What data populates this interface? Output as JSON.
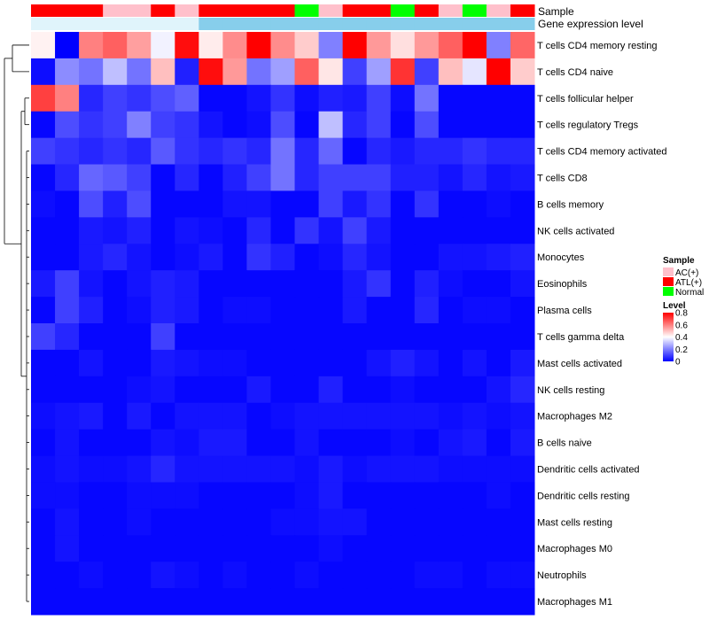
{
  "chart_data": {
    "type": "heatmap",
    "title": "",
    "annotation_rows": [
      {
        "name": "Sample",
        "label": "Sample"
      },
      {
        "name": "Gene expression level",
        "label": "Gene expression level"
      }
    ],
    "sample_groups": [
      "ATL(+)",
      "ATL(+)",
      "ATL(+)",
      "AC(+)",
      "AC(+)",
      "ATL(+)",
      "AC(+)",
      "ATL(+)",
      "ATL(+)",
      "ATL(+)",
      "ATL(+)",
      "Normal",
      "AC(+)",
      "ATL(+)",
      "ATL(+)",
      "Normal",
      "ATL(+)",
      "AC(+)",
      "Normal",
      "AC(+)",
      "ATL(+)"
    ],
    "expression_level": [
      "low",
      "low",
      "low",
      "low",
      "low",
      "low",
      "low",
      "high",
      "high",
      "high",
      "high",
      "high",
      "high",
      "high",
      "high",
      "high",
      "high",
      "high",
      "high",
      "high",
      "high"
    ],
    "rows": [
      "T cells CD4 memory resting",
      "T cells CD4 naive",
      "T cells follicular helper",
      "T cells regulatory  Tregs",
      "T cells CD4 memory activated",
      "T cells CD8",
      "B cells memory",
      "NK cells activated",
      "Monocytes",
      "Eosinophils",
      "Plasma cells",
      "T cells gamma delta",
      "Mast cells activated",
      "NK cells resting",
      "Macrophages M2",
      "B cells naive",
      "Dendritic cells activated",
      "Dendritic cells resting",
      "Mast cells resting",
      "Macrophages M0",
      "Neutrophils",
      "Macrophages M1"
    ],
    "values": [
      [
        0.42,
        0.0,
        0.6,
        0.65,
        0.55,
        0.38,
        0.78,
        0.43,
        0.58,
        0.8,
        0.58,
        0.48,
        0.2,
        0.82,
        0.56,
        0.45,
        0.56,
        0.65,
        0.82,
        0.2,
        0.64
      ],
      [
        0.02,
        0.22,
        0.18,
        0.3,
        0.18,
        0.5,
        0.05,
        0.78,
        0.56,
        0.18,
        0.25,
        0.65,
        0.44,
        0.1,
        0.25,
        0.72,
        0.1,
        0.5,
        0.36,
        0.82,
        0.48
      ],
      [
        0.7,
        0.6,
        0.06,
        0.1,
        0.08,
        0.12,
        0.15,
        0.01,
        0.01,
        0.03,
        0.08,
        0.02,
        0.05,
        0.04,
        0.1,
        0.02,
        0.18,
        0.01,
        0.01,
        0.01,
        0.01
      ],
      [
        0.01,
        0.12,
        0.08,
        0.1,
        0.2,
        0.1,
        0.08,
        0.03,
        0.01,
        0.02,
        0.12,
        0.01,
        0.3,
        0.06,
        0.1,
        0.01,
        0.12,
        0.01,
        0.01,
        0.01,
        0.01
      ],
      [
        0.1,
        0.08,
        0.06,
        0.08,
        0.06,
        0.14,
        0.08,
        0.06,
        0.08,
        0.06,
        0.18,
        0.06,
        0.16,
        0.01,
        0.06,
        0.04,
        0.06,
        0.06,
        0.08,
        0.06,
        0.06
      ],
      [
        0.01,
        0.06,
        0.16,
        0.14,
        0.1,
        0.01,
        0.06,
        0.01,
        0.05,
        0.1,
        0.18,
        0.06,
        0.1,
        0.1,
        0.1,
        0.05,
        0.05,
        0.03,
        0.06,
        0.03,
        0.04
      ],
      [
        0.02,
        0.01,
        0.12,
        0.05,
        0.12,
        0.01,
        0.01,
        0.01,
        0.03,
        0.03,
        0.01,
        0.01,
        0.1,
        0.04,
        0.08,
        0.01,
        0.08,
        0.01,
        0.01,
        0.02,
        0.01
      ],
      [
        0.01,
        0.01,
        0.04,
        0.03,
        0.05,
        0.01,
        0.03,
        0.02,
        0.01,
        0.06,
        0.01,
        0.08,
        0.03,
        0.1,
        0.04,
        0.01,
        0.01,
        0.01,
        0.01,
        0.01,
        0.01
      ],
      [
        0.01,
        0.01,
        0.04,
        0.06,
        0.03,
        0.01,
        0.02,
        0.04,
        0.01,
        0.08,
        0.05,
        0.01,
        0.02,
        0.06,
        0.03,
        0.01,
        0.01,
        0.03,
        0.03,
        0.04,
        0.05
      ],
      [
        0.04,
        0.1,
        0.03,
        0.01,
        0.03,
        0.05,
        0.04,
        0.01,
        0.01,
        0.01,
        0.01,
        0.01,
        0.01,
        0.04,
        0.08,
        0.01,
        0.05,
        0.02,
        0.01,
        0.01,
        0.03
      ],
      [
        0.01,
        0.1,
        0.05,
        0.01,
        0.02,
        0.05,
        0.04,
        0.01,
        0.02,
        0.02,
        0.01,
        0.01,
        0.01,
        0.04,
        0.01,
        0.01,
        0.06,
        0.01,
        0.02,
        0.02,
        0.01
      ],
      [
        0.1,
        0.06,
        0.01,
        0.01,
        0.01,
        0.1,
        0.01,
        0.01,
        0.01,
        0.01,
        0.01,
        0.01,
        0.01,
        0.01,
        0.01,
        0.01,
        0.01,
        0.01,
        0.01,
        0.01,
        0.01
      ],
      [
        0.01,
        0.01,
        0.03,
        0.01,
        0.01,
        0.04,
        0.03,
        0.02,
        0.02,
        0.01,
        0.01,
        0.01,
        0.01,
        0.01,
        0.03,
        0.05,
        0.03,
        0.01,
        0.03,
        0.01,
        0.04
      ],
      [
        0.01,
        0.01,
        0.01,
        0.01,
        0.02,
        0.03,
        0.01,
        0.01,
        0.01,
        0.04,
        0.01,
        0.01,
        0.05,
        0.01,
        0.01,
        0.02,
        0.01,
        0.01,
        0.01,
        0.03,
        0.06
      ],
      [
        0.02,
        0.03,
        0.04,
        0.01,
        0.04,
        0.01,
        0.03,
        0.03,
        0.03,
        0.01,
        0.02,
        0.03,
        0.03,
        0.03,
        0.03,
        0.03,
        0.03,
        0.02,
        0.03,
        0.02,
        0.03
      ],
      [
        0.01,
        0.03,
        0.01,
        0.01,
        0.01,
        0.03,
        0.02,
        0.04,
        0.04,
        0.01,
        0.01,
        0.03,
        0.01,
        0.01,
        0.01,
        0.02,
        0.01,
        0.03,
        0.04,
        0.01,
        0.04
      ],
      [
        0.02,
        0.03,
        0.02,
        0.02,
        0.03,
        0.06,
        0.03,
        0.03,
        0.03,
        0.03,
        0.03,
        0.02,
        0.04,
        0.02,
        0.03,
        0.03,
        0.03,
        0.02,
        0.02,
        0.02,
        0.02
      ],
      [
        0.02,
        0.02,
        0.01,
        0.01,
        0.02,
        0.02,
        0.02,
        0.01,
        0.01,
        0.01,
        0.01,
        0.02,
        0.04,
        0.01,
        0.01,
        0.01,
        0.01,
        0.01,
        0.01,
        0.02,
        0.01
      ],
      [
        0.01,
        0.03,
        0.01,
        0.01,
        0.02,
        0.01,
        0.01,
        0.01,
        0.01,
        0.01,
        0.02,
        0.02,
        0.03,
        0.03,
        0.01,
        0.01,
        0.01,
        0.01,
        0.01,
        0.01,
        0.01
      ],
      [
        0.01,
        0.03,
        0.01,
        0.01,
        0.01,
        0.01,
        0.01,
        0.01,
        0.01,
        0.01,
        0.01,
        0.01,
        0.02,
        0.01,
        0.01,
        0.01,
        0.01,
        0.01,
        0.01,
        0.01,
        0.01
      ],
      [
        0.01,
        0.01,
        0.02,
        0.01,
        0.01,
        0.03,
        0.02,
        0.01,
        0.02,
        0.01,
        0.01,
        0.02,
        0.01,
        0.01,
        0.01,
        0.01,
        0.02,
        0.02,
        0.01,
        0.02,
        0.02
      ],
      [
        0.01,
        0.01,
        0.01,
        0.01,
        0.01,
        0.01,
        0.01,
        0.01,
        0.01,
        0.01,
        0.01,
        0.01,
        0.01,
        0.01,
        0.01,
        0.01,
        0.01,
        0.01,
        0.01,
        0.01,
        0.01
      ]
    ],
    "color_scale": {
      "min": 0,
      "mid": 0.4,
      "max": 0.8,
      "low_color": "#0000ff",
      "mid_color": "#ffffff",
      "high_color": "#ff0000"
    },
    "legend": {
      "sample_title": "Sample",
      "sample_entries": [
        {
          "label": "AC(+)",
          "color": "#ffc0cb"
        },
        {
          "label": "ATL(+)",
          "color": "#ff0000"
        },
        {
          "label": "Normal",
          "color": "#00ff00"
        }
      ],
      "level_title": "Level",
      "level_ticks": [
        "0.8",
        "0.6",
        "0.4",
        "0.2",
        "0"
      ],
      "level_tick_values": [
        0.8,
        0.6,
        0.4,
        0.2,
        0
      ]
    },
    "expression_colors": {
      "low": "#e0f4fb",
      "high": "#87ceeb"
    },
    "row_dendrogram": true,
    "legend_position": "right"
  }
}
